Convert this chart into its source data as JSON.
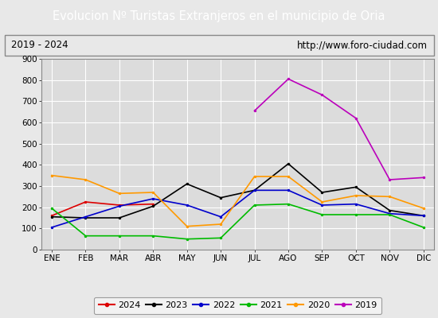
{
  "title": "Evolucion Nº Turistas Extranjeros en el municipio de Oria",
  "subtitle_left": "2019 - 2024",
  "subtitle_right": "http://www.foro-ciudad.com",
  "title_bg": "#4a86c8",
  "title_color": "#ffffff",
  "months": [
    "ENE",
    "FEB",
    "MAR",
    "ABR",
    "MAY",
    "JUN",
    "JUL",
    "AGO",
    "SEP",
    "OCT",
    "NOV",
    "DIC"
  ],
  "ylim": [
    0,
    900
  ],
  "yticks": [
    0,
    100,
    200,
    300,
    400,
    500,
    600,
    700,
    800,
    900
  ],
  "series": {
    "2024": {
      "color": "#dd0000",
      "data": [
        160,
        225,
        210,
        215,
        null,
        null,
        null,
        null,
        null,
        null,
        null,
        null
      ]
    },
    "2023": {
      "color": "#000000",
      "data": [
        155,
        150,
        150,
        205,
        310,
        245,
        280,
        405,
        270,
        295,
        185,
        160
      ]
    },
    "2022": {
      "color": "#0000cc",
      "data": [
        105,
        155,
        205,
        240,
        210,
        155,
        280,
        280,
        210,
        215,
        170,
        160
      ]
    },
    "2021": {
      "color": "#00bb00",
      "data": [
        195,
        65,
        65,
        65,
        50,
        55,
        210,
        215,
        165,
        165,
        165,
        105
      ]
    },
    "2020": {
      "color": "#ff9900",
      "data": [
        350,
        330,
        265,
        270,
        110,
        120,
        345,
        345,
        225,
        255,
        250,
        195
      ]
    },
    "2019": {
      "color": "#bb00bb",
      "data": [
        null,
        null,
        null,
        null,
        null,
        null,
        655,
        805,
        730,
        620,
        330,
        340
      ]
    }
  },
  "legend_order": [
    "2024",
    "2023",
    "2022",
    "2021",
    "2020",
    "2019"
  ],
  "bg_color": "#e8e8e8",
  "plot_bg": "#dcdcdc",
  "grid_color": "#ffffff",
  "border_color": "#888888"
}
